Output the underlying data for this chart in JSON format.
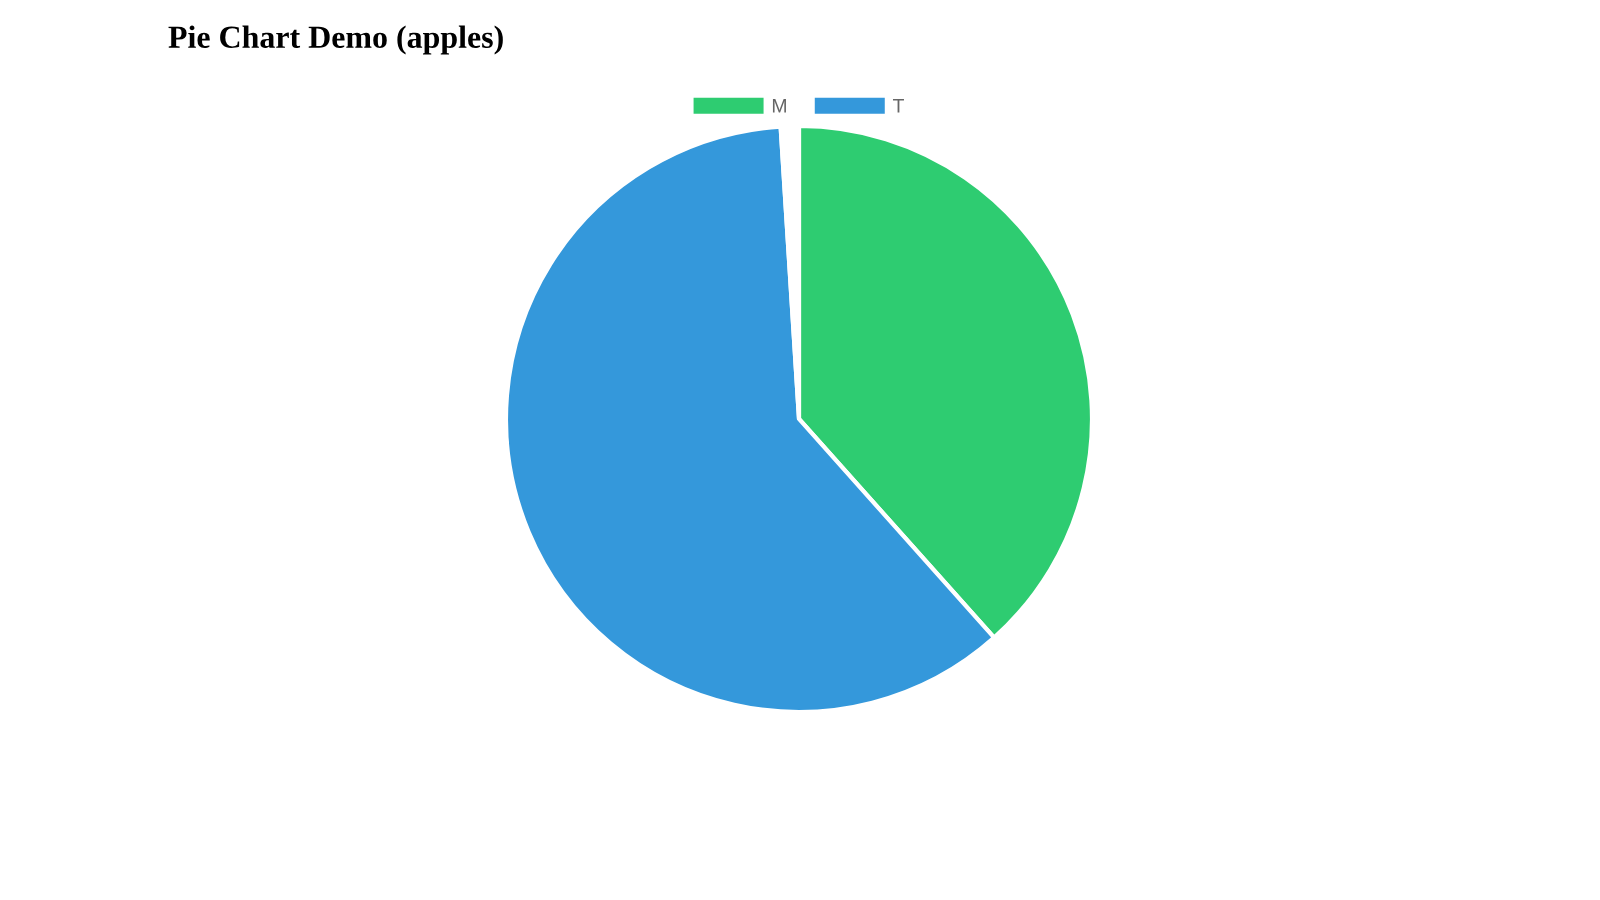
{
  "chart_data": {
    "type": "pie",
    "title": "Pie Chart Demo (apples)",
    "categories": [
      "M",
      "T",
      null
    ],
    "values": [
      38.4,
      60.6,
      1.0
    ],
    "colors": [
      "#2ecc71",
      "#3498db",
      "#ffffff"
    ],
    "legend": "top"
  }
}
